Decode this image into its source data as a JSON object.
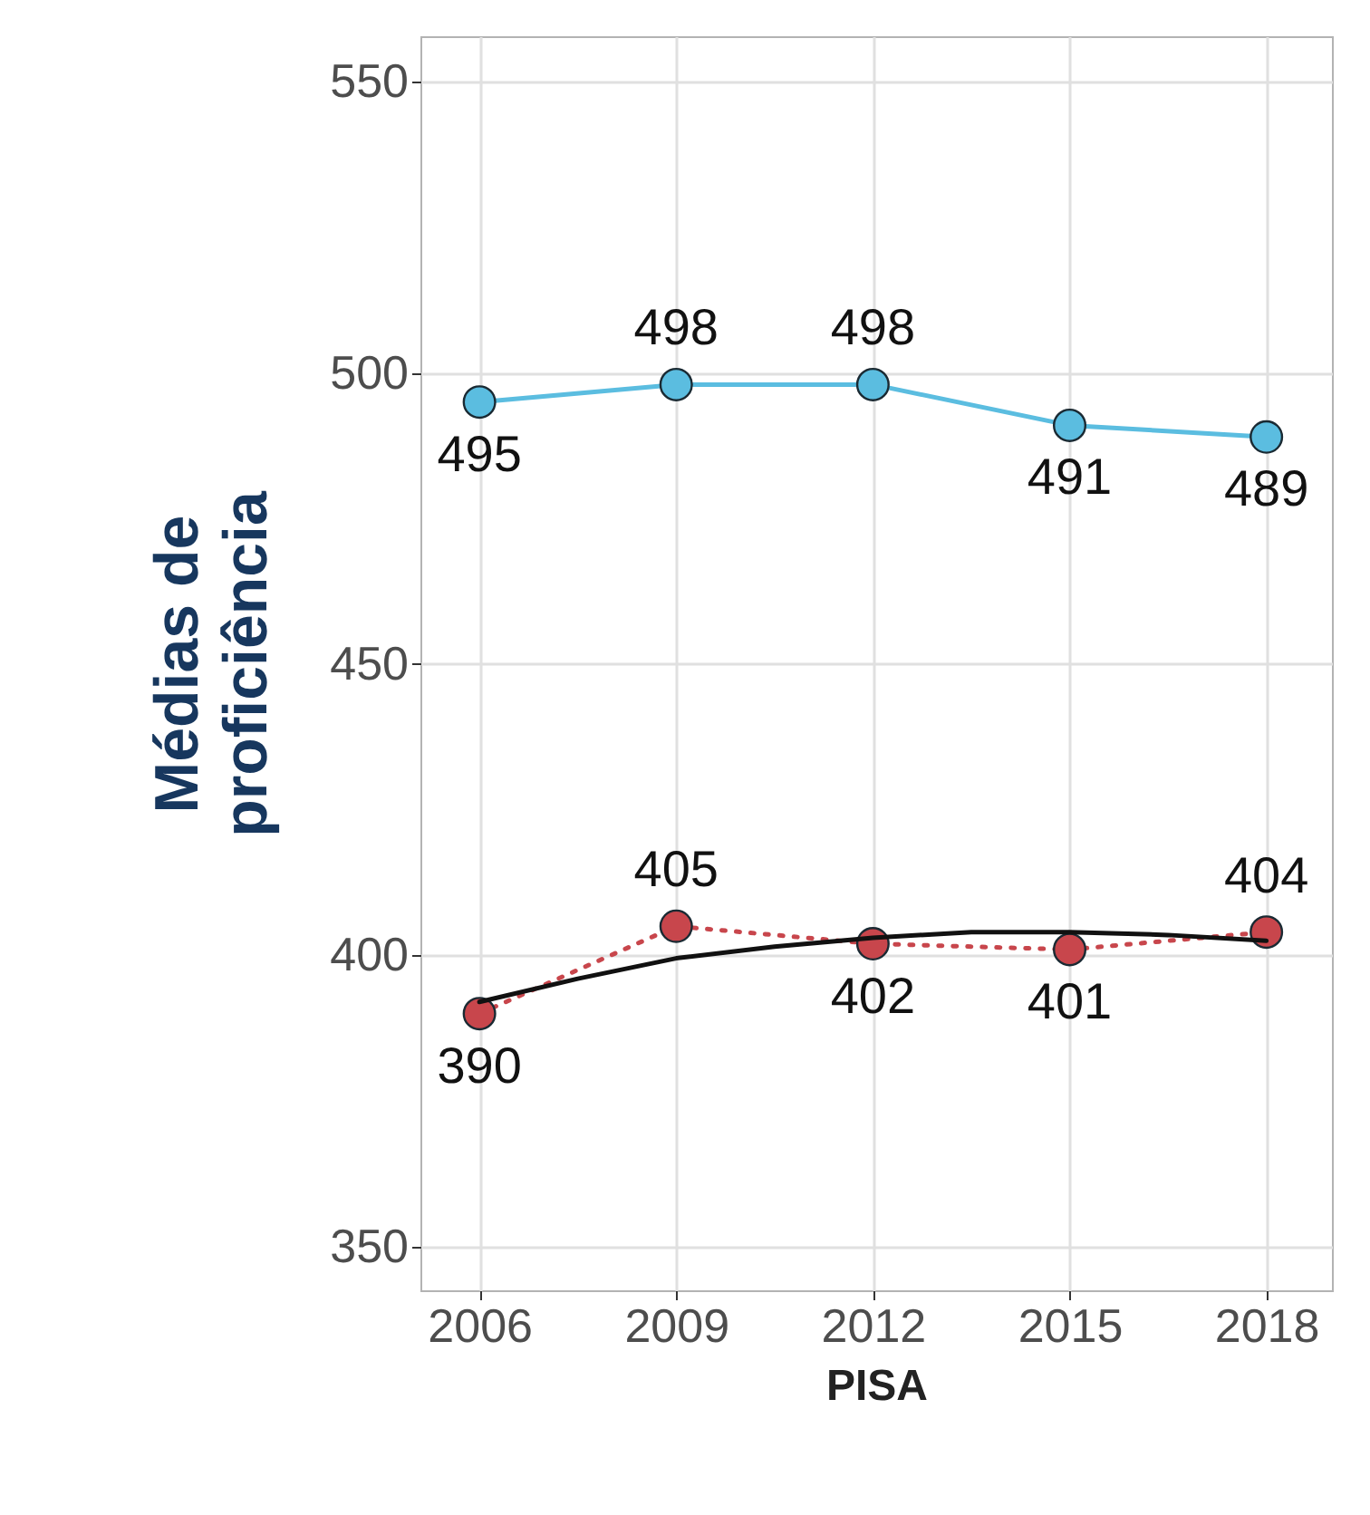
{
  "chart_data": {
    "type": "line",
    "xlabel": "PISA",
    "ylabel": "Médias de\nproficiência",
    "x": [
      2006,
      2009,
      2012,
      2015,
      2018
    ],
    "xlim": [
      2005.1,
      2019
    ],
    "xticks": [
      2006,
      2009,
      2012,
      2015,
      2018
    ],
    "ylim": [
      342.5,
      557.8
    ],
    "yticks": [
      350,
      400,
      450,
      500,
      550
    ],
    "grid": true,
    "marker": "circle",
    "series": [
      {
        "color": "#5bbde0",
        "values": [
          495,
          498,
          498,
          491,
          489
        ],
        "value_labels": [
          "495",
          "498",
          "498",
          "491",
          "489"
        ]
      },
      {
        "color": "#c8464c",
        "line_style": "dotted",
        "values": [
          390,
          405,
          402,
          401,
          404
        ],
        "value_labels": [
          "390",
          "405",
          "402",
          "401",
          "404"
        ]
      },
      {
        "type": "line",
        "color": "#111111",
        "marker": "none",
        "x": [
          2006,
          2007.5,
          2009,
          2010.5,
          2012,
          2013.5,
          2015,
          2016.5,
          2018
        ],
        "values": [
          392,
          396,
          399.5,
          401.5,
          403,
          404,
          404,
          403.5,
          402.5
        ]
      }
    ]
  }
}
